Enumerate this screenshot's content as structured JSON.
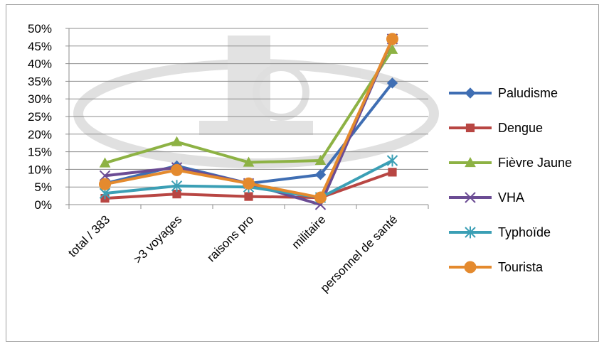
{
  "chart_data": {
    "type": "line",
    "categories": [
      "total / 383",
      ">3 voyages",
      "raisons pro",
      "militaire",
      "personnel de santé"
    ],
    "y_tick_labels": [
      "0%",
      "5%",
      "10%",
      "15%",
      "20%",
      "25%",
      "30%",
      "35%",
      "40%",
      "45%",
      "50%"
    ],
    "ylim": [
      0,
      50
    ],
    "grid": true,
    "legend_position": "right",
    "series": [
      {
        "name": "Paludisme",
        "color": "#3F6EB3",
        "marker": "diamond",
        "values": [
          6,
          11,
          6,
          8.5,
          34.5
        ]
      },
      {
        "name": "Dengue",
        "color": "#B84643",
        "marker": "square",
        "values": [
          1.8,
          3,
          2.3,
          2,
          9.2
        ]
      },
      {
        "name": "Fièvre Jaune",
        "color": "#8DB244",
        "marker": "triangle",
        "values": [
          11.8,
          17.8,
          12,
          12.5,
          44
        ]
      },
      {
        "name": "VHA",
        "color": "#6B4C94",
        "marker": "x",
        "values": [
          8.2,
          10.5,
          6,
          0,
          47
        ]
      },
      {
        "name": "Typhoïde",
        "color": "#3B9FB5",
        "marker": "star",
        "values": [
          3.2,
          5.3,
          5,
          2,
          12.5
        ]
      },
      {
        "name": "Tourista",
        "color": "#E48A2E",
        "marker": "circle",
        "values": [
          5.8,
          9.8,
          6,
          2,
          47
        ]
      }
    ]
  }
}
